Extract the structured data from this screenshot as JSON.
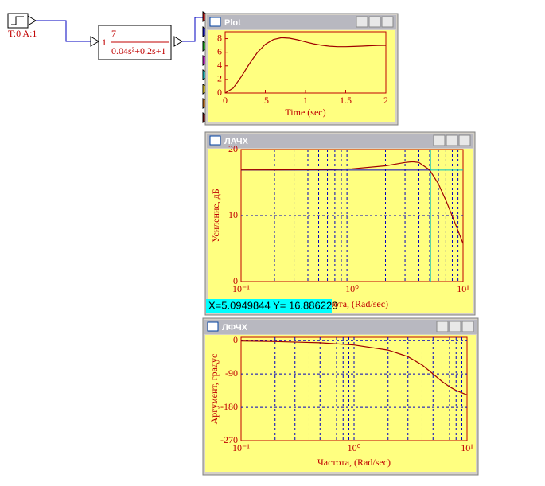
{
  "blocks": {
    "step": {
      "label": "T:0 A:1"
    },
    "transfer": {
      "input_label": "1",
      "numerator": "7",
      "denominator": "0.04s²+0.2s+1"
    }
  },
  "windows": [
    {
      "title": "Plot",
      "xlabel": "Time (sec)",
      "xlog": false,
      "grid": false,
      "color": "#a00000",
      "xlim": [
        0,
        2
      ],
      "ylim": [
        0,
        9
      ],
      "xticks": [
        0,
        {
          "value": 0.5,
          "label": ".5"
        },
        1,
        1.5,
        2
      ],
      "yticks": [
        0,
        2,
        4,
        6,
        8
      ],
      "x": [
        0,
        0.1,
        0.2,
        0.3,
        0.4,
        0.5,
        0.6,
        0.7,
        0.8,
        0.9,
        1.0,
        1.1,
        1.2,
        1.3,
        1.4,
        1.5,
        1.6,
        1.7,
        1.8,
        1.9,
        2.0
      ],
      "values": [
        0,
        0.73,
        2.38,
        4.27,
        5.95,
        7.17,
        7.87,
        8.13,
        8.07,
        7.83,
        7.52,
        7.24,
        7.02,
        6.88,
        6.82,
        6.82,
        6.85,
        6.9,
        6.95,
        6.99,
        7.01
      ]
    },
    {
      "title": "ЛАЧХ",
      "xlabel": "Частота, (Rad/sec)",
      "ylabel": "Усиление, дБ",
      "xlog": true,
      "grid": true,
      "color": "#a00000",
      "xlim": [
        0.1,
        10
      ],
      "ylim": [
        0,
        20
      ],
      "xticks": [
        {
          "value": 0.1,
          "label": "10⁻¹"
        },
        {
          "value": 1,
          "label": "10⁰"
        },
        {
          "value": 10,
          "label": "10¹"
        }
      ],
      "minor_xticks": [
        0.2,
        0.3,
        0.4,
        0.5,
        0.6,
        0.7,
        0.8,
        0.9,
        2,
        3,
        4,
        5,
        6,
        7,
        8,
        9
      ],
      "yticks": [
        0,
        10,
        20
      ],
      "x": [
        0.1,
        0.2,
        0.5,
        1,
        2,
        3,
        3.5,
        4,
        5,
        6,
        7,
        8,
        10
      ],
      "values": [
        16.9,
        16.91,
        16.95,
        17.07,
        17.53,
        18.04,
        18.15,
        18.04,
        16.9,
        14.77,
        12.3,
        9.92,
        5.76
      ]
    },
    {
      "title": "ЛФЧХ",
      "xlabel": "Частота, (Rad/sec)",
      "ylabel": "Аргумент, градус",
      "xlog": true,
      "grid": true,
      "color": "#a00000",
      "xlim": [
        0.1,
        10
      ],
      "ylim": [
        -270,
        9
      ],
      "xticks": [
        {
          "value": 0.1,
          "label": "10⁻¹"
        },
        {
          "value": 1,
          "label": "10⁰"
        },
        {
          "value": 10,
          "label": "10¹"
        }
      ],
      "minor_xticks": [
        0.2,
        0.3,
        0.4,
        0.5,
        0.6,
        0.7,
        0.8,
        0.9,
        2,
        3,
        4,
        5,
        6,
        7,
        8,
        9
      ],
      "yticks": [
        0,
        -90,
        -180,
        -270
      ],
      "x": [
        0.1,
        0.2,
        0.5,
        1,
        2,
        3,
        4,
        5,
        6,
        7,
        8,
        10
      ],
      "values": [
        -1.15,
        -2.29,
        -5.77,
        -11.77,
        -25.46,
        -43.15,
        -65.77,
        -90,
        -110.1,
        -124.4,
        -134.3,
        -146.3
      ]
    }
  ],
  "cursor": {
    "label": "X=5.0949844  Y= 16.886228",
    "x": 5.0949844,
    "y": 16.886228
  }
}
